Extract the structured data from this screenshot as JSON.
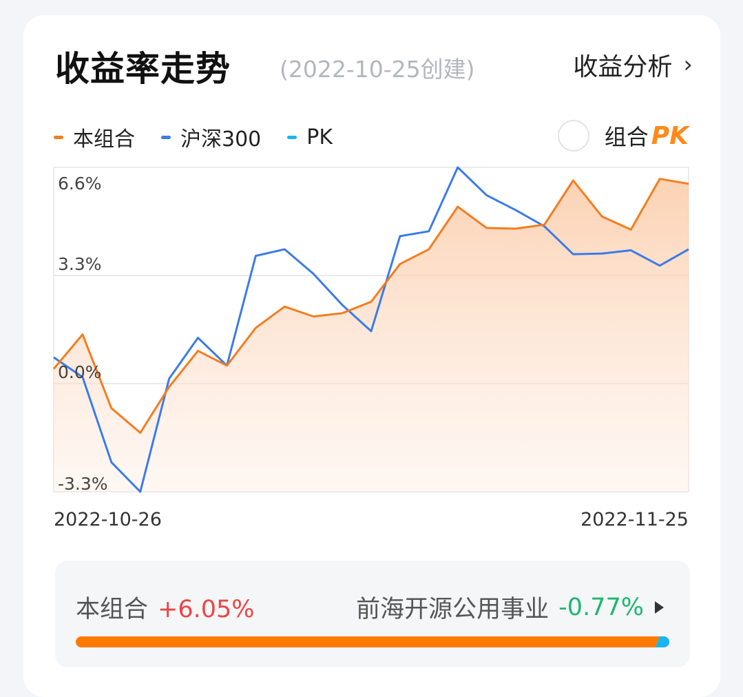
{
  "header": {
    "title": "收益率走势",
    "subtitle": "(2022-10-25创建)",
    "analysis_link": "收益分析"
  },
  "legend": {
    "items": [
      {
        "label": "本组合",
        "color": "#f57c1f"
      },
      {
        "label": "沪深300",
        "color": "#3b7bea"
      },
      {
        "label": "PK",
        "color": "#1ab4f0"
      }
    ],
    "pk_toggle_label": "组合",
    "pk_badge": "PK"
  },
  "chart_data": {
    "type": "line",
    "x_start": "2022-10-26",
    "x_end": "2022-11-25",
    "y_ticks": [
      "6.6%",
      "3.3%",
      "0.0%",
      "-3.3%"
    ],
    "y_tick_values": [
      6.6,
      3.3,
      0.0,
      -3.3
    ],
    "ylim": [
      -3.3,
      6.6
    ],
    "grid": true,
    "series": [
      {
        "name": "本组合",
        "color": "#f57c1f",
        "fill": true,
        "values": [
          0.45,
          1.5,
          -0.75,
          -1.5,
          -0.1,
          1.0,
          0.55,
          1.7,
          2.35,
          2.05,
          2.15,
          2.5,
          3.65,
          4.1,
          5.4,
          4.75,
          4.73,
          4.85,
          6.2,
          5.1,
          4.7,
          6.25,
          6.1
        ]
      },
      {
        "name": "沪深300",
        "color": "#3b7bea",
        "fill": false,
        "values": [
          0.8,
          0.2,
          -2.4,
          -3.3,
          0.15,
          1.4,
          0.55,
          3.9,
          4.1,
          3.35,
          2.4,
          1.6,
          4.5,
          4.65,
          6.6,
          5.75,
          5.3,
          4.8,
          3.95,
          3.97,
          4.07,
          3.6,
          4.1
        ]
      }
    ]
  },
  "stats": {
    "portfolio_label": "本组合",
    "portfolio_value": "+6.05%",
    "compare_label": "前海开源公用事业",
    "compare_value": "-0.77%",
    "compare_ratio": 0.98
  }
}
